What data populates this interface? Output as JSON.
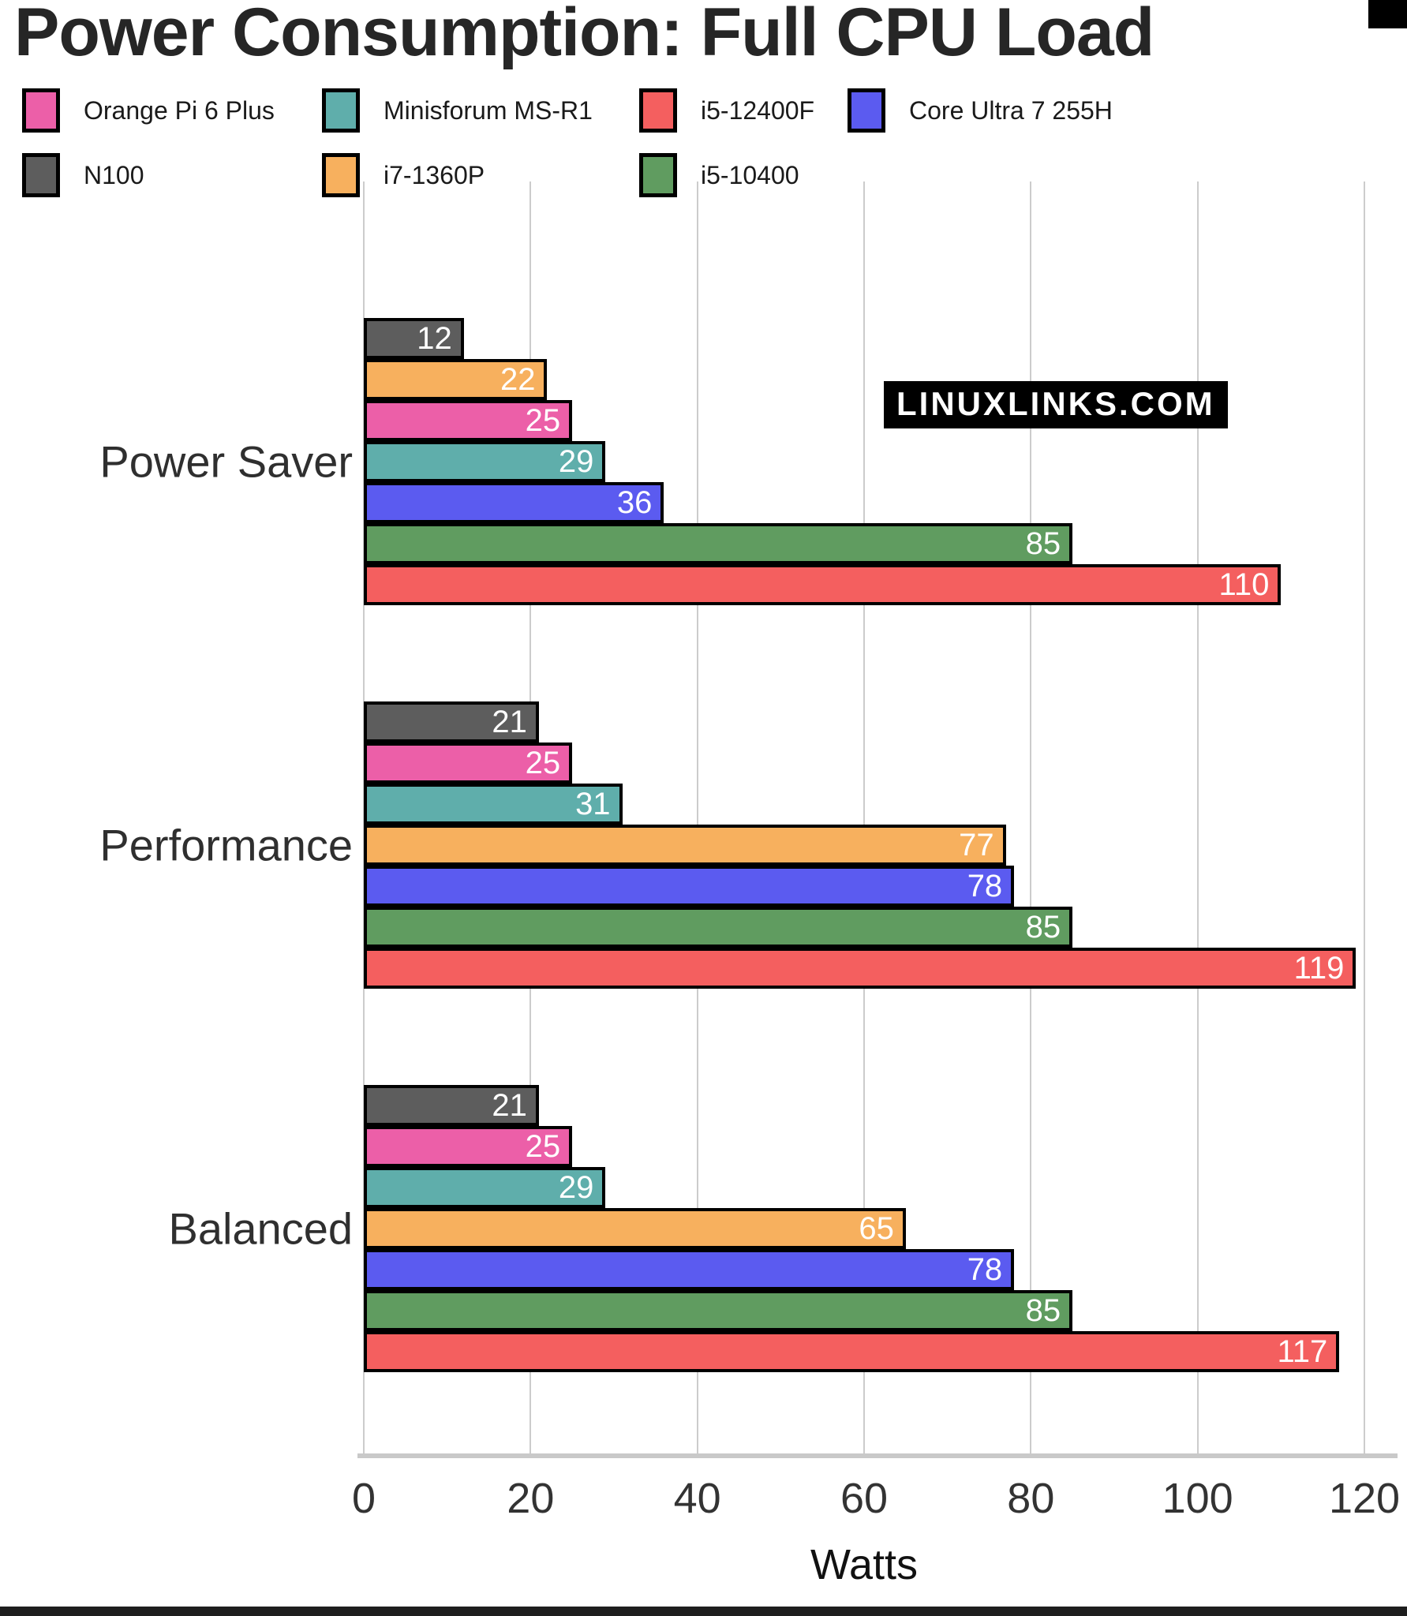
{
  "page": {
    "title": "Power Consumption: Full CPU Load",
    "watermark": "LINUXLINKS.COM"
  },
  "chart_data": {
    "type": "bar",
    "orientation": "horizontal",
    "title": "Power Consumption: Full CPU Load",
    "xlabel": "Watts",
    "xlim": [
      0,
      120
    ],
    "xticks": [
      0,
      20,
      40,
      60,
      80,
      100,
      120
    ],
    "grid": "vertical",
    "legend_position": "top",
    "value_label_style": "white, inside right end of bar",
    "series": [
      {
        "name": "Orange Pi 6 Plus",
        "color": "#EC5FA8"
      },
      {
        "name": "Minisforum MS-R1",
        "color": "#5FAEAB"
      },
      {
        "name": "i5-12400F",
        "color": "#F45F5F"
      },
      {
        "name": "Core Ultra 7 255H",
        "color": "#5B5BF0"
      },
      {
        "name": "N100",
        "color": "#5D5D5D"
      },
      {
        "name": "i7-1360P",
        "color": "#F7B05E"
      },
      {
        "name": "i5-10400",
        "color": "#609C60"
      }
    ],
    "groups": [
      {
        "label": "Power Saver",
        "bars": [
          {
            "series": "N100",
            "value": 12
          },
          {
            "series": "i7-1360P",
            "value": 22
          },
          {
            "series": "Orange Pi 6 Plus",
            "value": 25
          },
          {
            "series": "Minisforum MS-R1",
            "value": 29
          },
          {
            "series": "Core Ultra 7 255H",
            "value": 36
          },
          {
            "series": "i5-10400",
            "value": 85
          },
          {
            "series": "i5-12400F",
            "value": 110
          }
        ]
      },
      {
        "label": "Performance",
        "bars": [
          {
            "series": "N100",
            "value": 21
          },
          {
            "series": "Orange Pi 6 Plus",
            "value": 25
          },
          {
            "series": "Minisforum MS-R1",
            "value": 31
          },
          {
            "series": "i7-1360P",
            "value": 77
          },
          {
            "series": "Core Ultra 7 255H",
            "value": 78
          },
          {
            "series": "i5-10400",
            "value": 85
          },
          {
            "series": "i5-12400F",
            "value": 119
          }
        ]
      },
      {
        "label": "Balanced",
        "bars": [
          {
            "series": "N100",
            "value": 21
          },
          {
            "series": "Orange Pi 6 Plus",
            "value": 25
          },
          {
            "series": "Minisforum MS-R1",
            "value": 29
          },
          {
            "series": "i7-1360P",
            "value": 65
          },
          {
            "series": "Core Ultra 7 255H",
            "value": 78
          },
          {
            "series": "i5-10400",
            "value": 85
          },
          {
            "series": "i5-12400F",
            "value": 117
          }
        ]
      }
    ]
  }
}
